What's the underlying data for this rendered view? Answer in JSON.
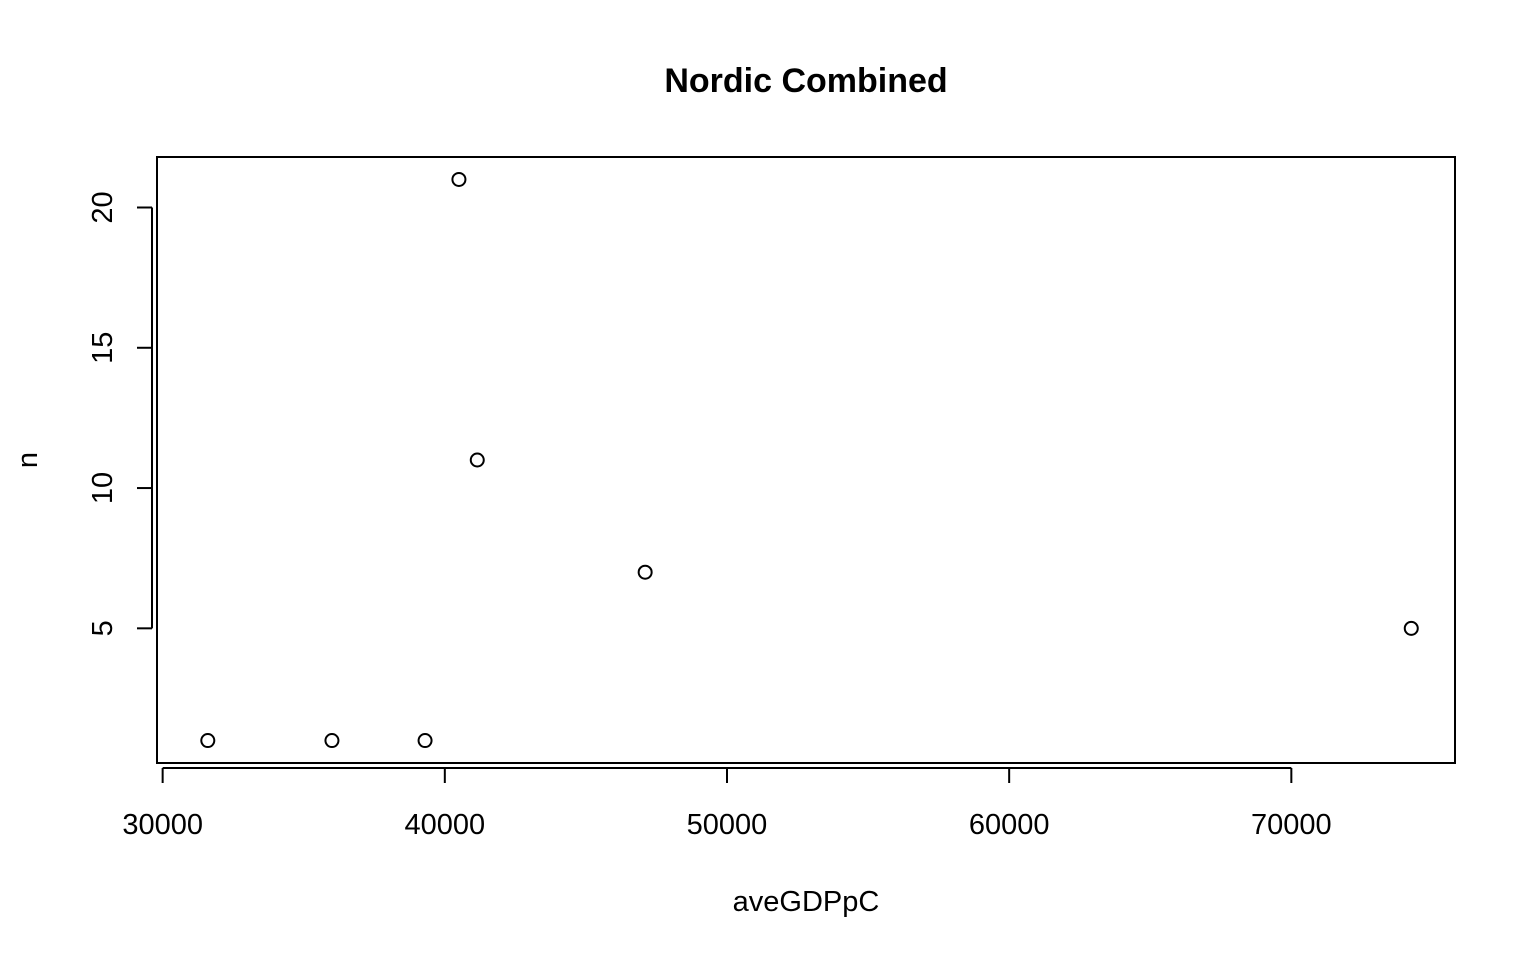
{
  "chart_data": {
    "type": "scatter",
    "title": "Nordic Combined",
    "xlabel": "aveGDPpC",
    "ylabel": "n",
    "xlim": [
      29800,
      75800
    ],
    "ylim": [
      0.2,
      21.8
    ],
    "x_ticks": [
      30000,
      40000,
      50000,
      60000,
      70000
    ],
    "x_tick_labels": [
      "30000",
      "40000",
      "50000",
      "60000",
      "70000"
    ],
    "y_ticks": [
      5,
      10,
      15,
      20
    ],
    "y_tick_labels": [
      "5",
      "10",
      "15",
      "20"
    ],
    "grid": false,
    "legend": "none",
    "points": [
      {
        "x": 31600,
        "y": 1
      },
      {
        "x": 36000,
        "y": 1
      },
      {
        "x": 39300,
        "y": 1
      },
      {
        "x": 40500,
        "y": 21
      },
      {
        "x": 41150,
        "y": 11
      },
      {
        "x": 47100,
        "y": 7
      },
      {
        "x": 74250,
        "y": 5
      }
    ]
  }
}
